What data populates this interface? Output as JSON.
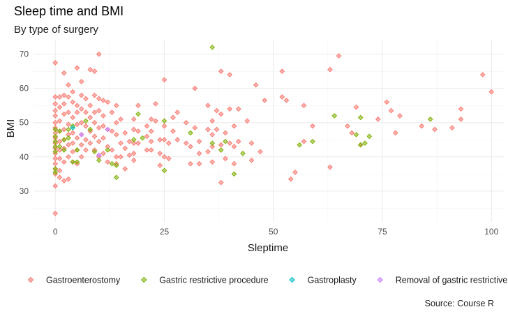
{
  "chart_data": {
    "type": "scatter",
    "title": "Sleep time and BMI",
    "subtitle": "By type of surgery",
    "xlabel": "Sleptime",
    "ylabel": "BMI",
    "caption": "Source: Course R",
    "xlim": [
      -5,
      103
    ],
    "ylim": [
      21,
      74
    ],
    "xticks": [
      0,
      25,
      50,
      75,
      100
    ],
    "yticks": [
      30,
      40,
      50,
      60,
      70
    ],
    "grid": true,
    "legend_position": "bottom",
    "series": [
      {
        "name": "Gastroenterostomy",
        "color": "#F8766D",
        "points": [
          [
            0,
            67.5
          ],
          [
            0,
            57.5
          ],
          [
            0,
            55.5
          ],
          [
            0,
            53.5
          ],
          [
            0,
            52
          ],
          [
            0,
            50
          ],
          [
            0,
            48.5
          ],
          [
            0,
            47
          ],
          [
            0,
            45.5
          ],
          [
            0,
            44
          ],
          [
            0,
            42.5
          ],
          [
            0,
            41
          ],
          [
            0,
            39.5
          ],
          [
            0,
            38
          ],
          [
            0,
            36.5
          ],
          [
            0,
            35
          ],
          [
            0,
            31.5
          ],
          [
            0,
            23.5
          ],
          [
            1,
            57.5
          ],
          [
            1,
            54.5
          ],
          [
            1,
            50.5
          ],
          [
            1,
            47.5
          ],
          [
            1,
            44.5
          ],
          [
            1,
            42
          ],
          [
            1,
            39.5
          ],
          [
            1,
            36
          ],
          [
            1,
            34
          ],
          [
            2,
            64.5
          ],
          [
            2,
            58
          ],
          [
            2,
            55.5
          ],
          [
            2,
            52.5
          ],
          [
            2,
            48
          ],
          [
            2,
            45
          ],
          [
            2,
            42.5
          ],
          [
            2,
            38.5
          ],
          [
            2,
            33
          ],
          [
            3,
            61
          ],
          [
            3,
            57.5
          ],
          [
            3,
            53
          ],
          [
            3,
            49.5
          ],
          [
            3,
            46.5
          ],
          [
            3,
            43.5
          ],
          [
            3,
            40
          ],
          [
            3,
            33.5
          ],
          [
            4,
            59
          ],
          [
            4,
            56
          ],
          [
            4,
            51.5
          ],
          [
            4,
            47
          ],
          [
            4,
            44
          ],
          [
            4,
            41.5
          ],
          [
            4,
            38.5
          ],
          [
            5,
            66
          ],
          [
            5,
            55
          ],
          [
            5,
            53
          ],
          [
            5,
            49.5
          ],
          [
            5,
            45.5
          ],
          [
            5,
            42
          ],
          [
            5,
            38
          ],
          [
            6,
            62
          ],
          [
            6,
            58
          ],
          [
            6,
            54
          ],
          [
            6,
            50
          ],
          [
            6,
            46.5
          ],
          [
            6,
            43.5
          ],
          [
            6,
            40
          ],
          [
            7,
            57
          ],
          [
            7,
            53
          ],
          [
            7,
            49
          ],
          [
            7,
            45
          ],
          [
            7,
            42
          ],
          [
            8,
            65.5
          ],
          [
            8,
            55
          ],
          [
            8,
            51.5
          ],
          [
            8,
            47.5
          ],
          [
            8,
            44
          ],
          [
            9,
            65
          ],
          [
            9,
            58
          ],
          [
            9,
            53
          ],
          [
            9,
            50
          ],
          [
            9,
            46
          ],
          [
            9,
            42
          ],
          [
            10,
            70
          ],
          [
            10,
            57
          ],
          [
            10,
            53.5
          ],
          [
            10,
            48.5
          ],
          [
            10,
            44.5
          ],
          [
            10,
            40
          ],
          [
            11,
            56.5
          ],
          [
            11,
            52
          ],
          [
            11,
            49
          ],
          [
            11,
            45.5
          ],
          [
            11,
            41
          ],
          [
            12,
            56
          ],
          [
            12,
            48
          ],
          [
            12,
            43
          ],
          [
            12,
            38.5
          ],
          [
            13,
            53
          ],
          [
            13,
            47.5
          ],
          [
            13,
            42
          ],
          [
            14,
            55
          ],
          [
            14,
            50
          ],
          [
            14,
            46.5
          ],
          [
            14,
            40
          ],
          [
            14,
            38
          ],
          [
            15,
            51
          ],
          [
            15,
            44
          ],
          [
            15,
            40
          ],
          [
            16,
            47
          ],
          [
            16,
            42.5
          ],
          [
            16,
            36.5
          ],
          [
            17,
            44.5
          ],
          [
            17,
            40.5
          ],
          [
            18,
            51
          ],
          [
            18,
            48
          ],
          [
            18,
            44
          ],
          [
            18,
            41
          ],
          [
            18,
            39
          ],
          [
            19,
            55
          ],
          [
            19,
            47.5
          ],
          [
            19,
            44
          ],
          [
            21,
            49
          ],
          [
            21,
            46
          ],
          [
            21,
            42
          ],
          [
            22,
            51
          ],
          [
            22,
            47.5
          ],
          [
            22,
            44.5
          ],
          [
            22,
            42
          ],
          [
            23,
            55.5
          ],
          [
            23,
            50.5
          ],
          [
            24,
            45
          ],
          [
            24,
            41
          ],
          [
            24,
            37.5
          ],
          [
            25,
            62.5
          ],
          [
            25,
            49
          ],
          [
            25,
            45
          ],
          [
            25,
            40
          ],
          [
            26,
            44
          ],
          [
            26,
            39.5
          ],
          [
            27,
            51.5
          ],
          [
            27,
            47.5
          ],
          [
            28,
            53
          ],
          [
            28,
            45
          ],
          [
            30,
            50
          ],
          [
            30,
            44
          ],
          [
            31,
            43
          ],
          [
            31,
            38
          ],
          [
            32,
            60
          ],
          [
            32,
            48.5
          ],
          [
            33,
            44.5
          ],
          [
            33,
            41
          ],
          [
            33,
            38
          ],
          [
            35,
            55
          ],
          [
            35,
            48
          ],
          [
            35,
            41.5
          ],
          [
            36,
            50.5
          ],
          [
            36,
            46.5
          ],
          [
            36,
            43
          ],
          [
            36,
            38.5
          ],
          [
            37,
            53.5
          ],
          [
            37,
            48
          ],
          [
            38,
            65
          ],
          [
            38,
            52.5
          ],
          [
            38,
            43.5
          ],
          [
            38,
            32.5
          ],
          [
            39,
            47
          ],
          [
            39,
            39.5
          ],
          [
            40,
            64
          ],
          [
            40,
            54
          ],
          [
            40,
            44
          ],
          [
            41,
            49
          ],
          [
            41,
            43
          ],
          [
            41,
            38
          ],
          [
            42,
            54
          ],
          [
            42,
            44.5
          ],
          [
            44,
            50.5
          ],
          [
            45,
            44
          ],
          [
            45,
            39
          ],
          [
            46,
            61
          ],
          [
            47,
            41.5
          ],
          [
            48,
            56.5
          ],
          [
            52,
            65
          ],
          [
            52,
            57.5
          ],
          [
            53,
            56.5
          ],
          [
            54,
            33.5
          ],
          [
            55,
            35.5
          ],
          [
            57,
            55
          ],
          [
            57,
            44.5
          ],
          [
            59,
            49
          ],
          [
            63,
            65.5
          ],
          [
            63,
            37
          ],
          [
            65,
            69.5
          ],
          [
            67,
            49
          ],
          [
            68,
            47
          ],
          [
            69,
            54.5
          ],
          [
            70,
            43.5
          ],
          [
            74,
            51
          ],
          [
            76,
            56
          ],
          [
            77,
            53.5
          ],
          [
            78,
            47
          ],
          [
            79,
            52
          ],
          [
            84,
            49
          ],
          [
            87,
            48
          ],
          [
            91,
            48.5
          ],
          [
            93,
            51
          ],
          [
            93,
            54
          ],
          [
            98,
            64
          ],
          [
            100,
            59
          ]
        ]
      },
      {
        "name": "Gastric restrictive procedure",
        "color": "#7CAE00",
        "points": [
          [
            0,
            48
          ],
          [
            0,
            46
          ],
          [
            0,
            44.5
          ],
          [
            0,
            43
          ],
          [
            0,
            41.5
          ],
          [
            0,
            36.5
          ],
          [
            0,
            35.5
          ],
          [
            1,
            47.5
          ],
          [
            1,
            43
          ],
          [
            2,
            45
          ],
          [
            2,
            42
          ],
          [
            3,
            48
          ],
          [
            3,
            45.5
          ],
          [
            4,
            49
          ],
          [
            4,
            38.5
          ],
          [
            5,
            42
          ],
          [
            5,
            38.5
          ],
          [
            7,
            50.5
          ],
          [
            8,
            48
          ],
          [
            9,
            41.5
          ],
          [
            10,
            39
          ],
          [
            12,
            42
          ],
          [
            13,
            38
          ],
          [
            14,
            37.5
          ],
          [
            14,
            34
          ],
          [
            18,
            45
          ],
          [
            19,
            52.5
          ],
          [
            20,
            45.5
          ],
          [
            25,
            50.5
          ],
          [
            25,
            36
          ],
          [
            31,
            47
          ],
          [
            36,
            72
          ],
          [
            36,
            44
          ],
          [
            38,
            42
          ],
          [
            39,
            44.5
          ],
          [
            41,
            35
          ],
          [
            43,
            41
          ],
          [
            56,
            43.5
          ],
          [
            59,
            44.5
          ],
          [
            64,
            52
          ],
          [
            69,
            46.5
          ],
          [
            70,
            51.5
          ],
          [
            70,
            43.5
          ],
          [
            71,
            44
          ],
          [
            72,
            46
          ],
          [
            86,
            51
          ]
        ]
      },
      {
        "name": "Gastroplasty",
        "color": "#00BFC4",
        "points": [
          [
            4,
            48.5
          ]
        ]
      },
      {
        "name": "Removal of gastric restrictive devi",
        "color": "#C77CFF",
        "points": [
          [
            6,
            46.5
          ],
          [
            10,
            40.5
          ],
          [
            12,
            48
          ]
        ]
      }
    ]
  }
}
